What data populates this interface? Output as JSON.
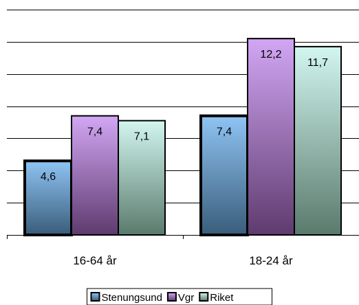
{
  "chart_data": {
    "type": "bar",
    "categories": [
      "16-64 år",
      "18-24 år"
    ],
    "series": [
      {
        "name": "Stenungsund",
        "values": [
          4.6,
          7.4
        ],
        "labels": [
          "4,6",
          "7,4"
        ],
        "color_top": "#8fc4f4",
        "color_bottom": "#3a5d7a"
      },
      {
        "name": "Vgr",
        "values": [
          7.4,
          12.2
        ],
        "labels": [
          "7,4",
          "12,2"
        ],
        "color_top": "#d2a6f4",
        "color_bottom": "#5e3b6e"
      },
      {
        "name": "Riket",
        "values": [
          7.1,
          11.7
        ],
        "labels": [
          "7,1",
          "11,7"
        ],
        "color_top": "#d2f6f0",
        "color_bottom": "#5a7a6c"
      }
    ],
    "ylim": [
      0,
      14
    ],
    "y_tick_step": 2,
    "grid": true,
    "show_y_tick_labels": false,
    "legend": {
      "position": "bottom",
      "border": true
    }
  }
}
